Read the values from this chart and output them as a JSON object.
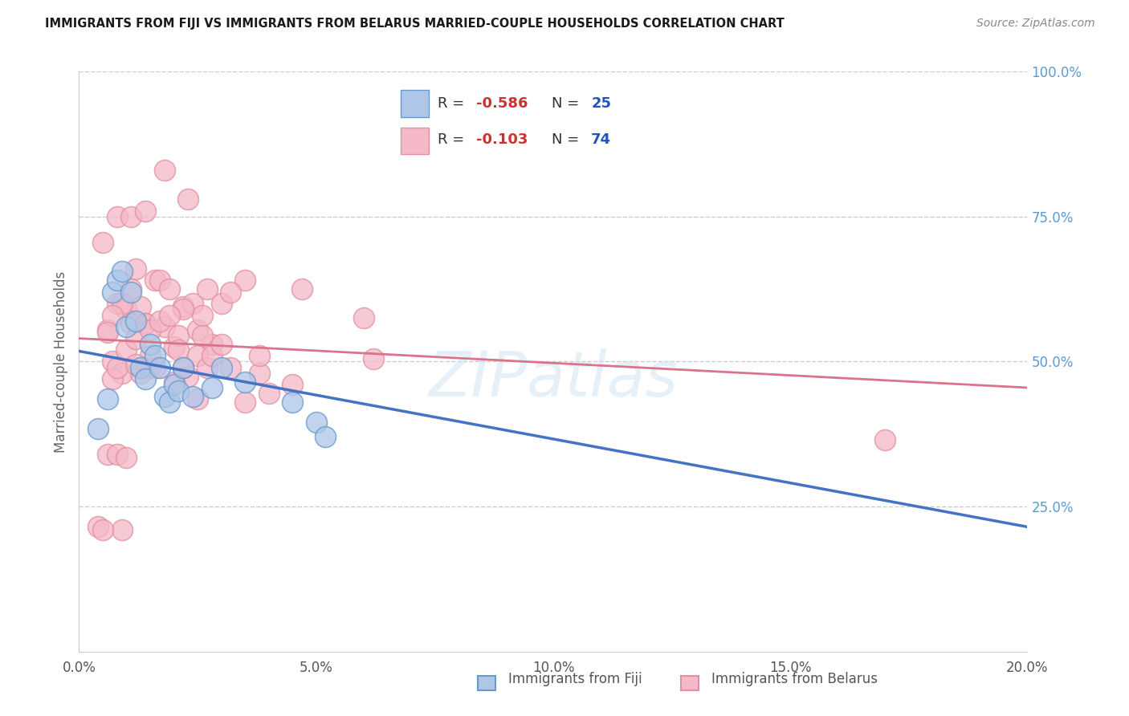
{
  "title": "IMMIGRANTS FROM FIJI VS IMMIGRANTS FROM BELARUS MARRIED-COUPLE HOUSEHOLDS CORRELATION CHART",
  "source": "Source: ZipAtlas.com",
  "ylabel": "Married-couple Households",
  "fiji_color": "#aec6e8",
  "fiji_color_line": "#4472c4",
  "fiji_color_edge": "#6699cc",
  "belarus_color": "#f5b8c8",
  "belarus_color_line": "#d9748a",
  "belarus_color_edge": "#e090a0",
  "fiji_R": -0.586,
  "fiji_N": 25,
  "belarus_R": -0.103,
  "belarus_N": 74,
  "xlim": [
    0.0,
    0.2
  ],
  "ylim": [
    0.0,
    1.0
  ],
  "xticks": [
    0.0,
    0.05,
    0.1,
    0.15,
    0.2
  ],
  "yticks_right": [
    0.25,
    0.5,
    0.75,
    1.0
  ],
  "watermark": "ZIPatlas",
  "fiji_line_x": [
    0.0,
    0.2
  ],
  "fiji_line_y": [
    0.518,
    0.215
  ],
  "belarus_line_x": [
    0.0,
    0.2
  ],
  "belarus_line_y": [
    0.54,
    0.455
  ],
  "fiji_scatter_x": [
    0.004,
    0.006,
    0.007,
    0.008,
    0.009,
    0.01,
    0.011,
    0.012,
    0.013,
    0.014,
    0.015,
    0.016,
    0.017,
    0.018,
    0.019,
    0.02,
    0.021,
    0.022,
    0.024,
    0.028,
    0.03,
    0.035,
    0.045,
    0.05,
    0.052
  ],
  "fiji_scatter_y": [
    0.385,
    0.435,
    0.62,
    0.64,
    0.655,
    0.56,
    0.62,
    0.57,
    0.49,
    0.47,
    0.53,
    0.51,
    0.49,
    0.44,
    0.43,
    0.46,
    0.45,
    0.49,
    0.44,
    0.455,
    0.49,
    0.465,
    0.43,
    0.395,
    0.37
  ],
  "belarus_scatter_x": [
    0.004,
    0.005,
    0.006,
    0.007,
    0.008,
    0.009,
    0.01,
    0.011,
    0.012,
    0.013,
    0.014,
    0.015,
    0.016,
    0.017,
    0.018,
    0.019,
    0.02,
    0.021,
    0.022,
    0.023,
    0.024,
    0.025,
    0.026,
    0.027,
    0.028,
    0.007,
    0.008,
    0.009,
    0.01,
    0.011,
    0.012,
    0.013,
    0.014,
    0.015,
    0.016,
    0.017,
    0.02,
    0.021,
    0.022,
    0.025,
    0.026,
    0.027,
    0.028,
    0.03,
    0.032,
    0.035,
    0.038,
    0.04,
    0.045,
    0.047,
    0.06,
    0.062,
    0.03,
    0.035,
    0.038,
    0.032,
    0.025,
    0.022,
    0.019,
    0.015,
    0.012,
    0.009,
    0.007,
    0.006,
    0.005,
    0.008,
    0.011,
    0.014,
    0.018,
    0.023,
    0.17,
    0.006,
    0.008,
    0.01
  ],
  "belarus_scatter_y": [
    0.215,
    0.705,
    0.555,
    0.5,
    0.6,
    0.48,
    0.59,
    0.625,
    0.66,
    0.595,
    0.565,
    0.49,
    0.64,
    0.64,
    0.56,
    0.625,
    0.525,
    0.545,
    0.595,
    0.475,
    0.6,
    0.555,
    0.58,
    0.625,
    0.53,
    0.47,
    0.49,
    0.6,
    0.52,
    0.565,
    0.54,
    0.48,
    0.565,
    0.555,
    0.49,
    0.57,
    0.465,
    0.52,
    0.59,
    0.51,
    0.545,
    0.49,
    0.51,
    0.53,
    0.49,
    0.43,
    0.48,
    0.445,
    0.46,
    0.625,
    0.575,
    0.505,
    0.6,
    0.64,
    0.51,
    0.62,
    0.435,
    0.49,
    0.58,
    0.51,
    0.495,
    0.21,
    0.58,
    0.55,
    0.21,
    0.75,
    0.75,
    0.76,
    0.83,
    0.78,
    0.365,
    0.34,
    0.34,
    0.335
  ]
}
